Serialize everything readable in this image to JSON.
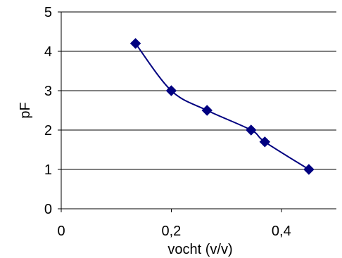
{
  "chart_data": {
    "type": "line",
    "xlabel": "vocht (v/v)",
    "ylabel": "pF",
    "xlim": [
      0,
      0.5
    ],
    "ylim": [
      0,
      5
    ],
    "x_ticks": [
      {
        "value": 0,
        "label": "0"
      },
      {
        "value": 0.2,
        "label": "0,2"
      },
      {
        "value": 0.4,
        "label": "0,4"
      }
    ],
    "y_ticks": [
      {
        "value": 0,
        "label": "0"
      },
      {
        "value": 1,
        "label": "1"
      },
      {
        "value": 2,
        "label": "2"
      },
      {
        "value": 3,
        "label": "3"
      },
      {
        "value": 4,
        "label": "4"
      },
      {
        "value": 5,
        "label": "5"
      }
    ],
    "grid": "horizontal",
    "legend": "none",
    "smooth": true,
    "series": [
      {
        "color": "#000080",
        "marker": "diamond",
        "points": [
          {
            "x": 0.135,
            "y": 4.2
          },
          {
            "x": 0.2,
            "y": 3.0
          },
          {
            "x": 0.265,
            "y": 2.5
          },
          {
            "x": 0.345,
            "y": 2.0
          },
          {
            "x": 0.37,
            "y": 1.7
          },
          {
            "x": 0.45,
            "y": 1.0
          }
        ]
      }
    ]
  }
}
